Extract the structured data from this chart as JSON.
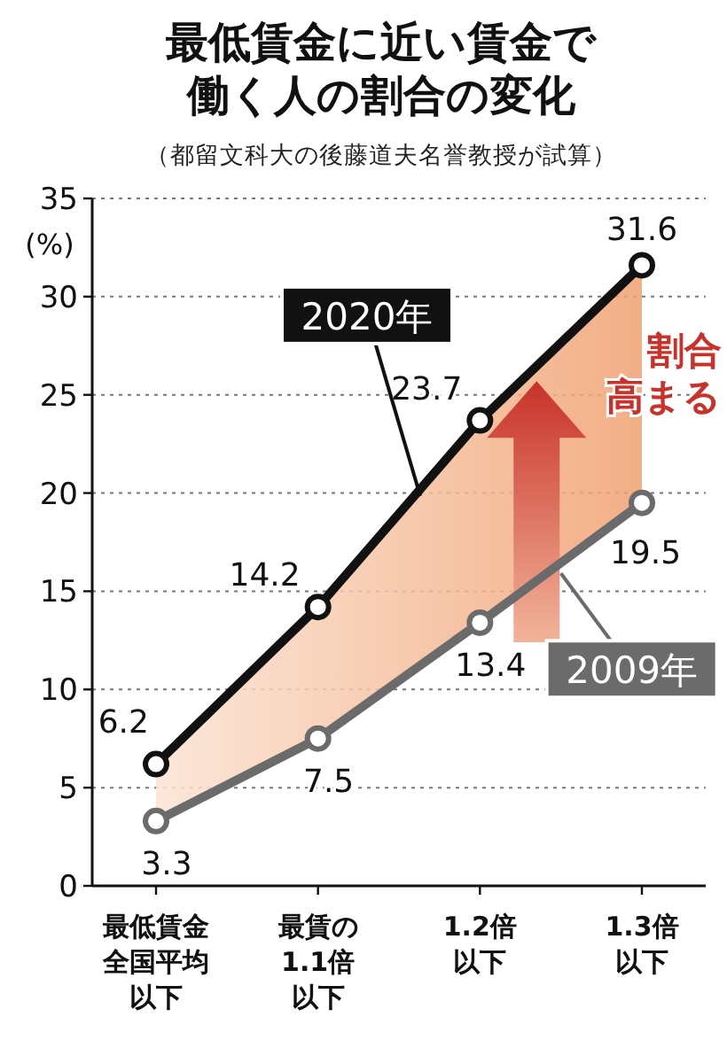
{
  "chart_data": {
    "type": "line",
    "title": "最低賃金に近い賃金で働く人の割合の変化",
    "subtitle": "（都留文科大の後藤道夫名誉教授が試算）",
    "ylabel": "(%)",
    "categories": [
      "最低賃金全国平均以下",
      "最賃の1.1倍以下",
      "1.2倍以下",
      "1.3倍以下"
    ],
    "series": [
      {
        "name": "2020年",
        "color": "#111111",
        "values": [
          6.2,
          14.2,
          23.7,
          31.6
        ]
      },
      {
        "name": "2009年",
        "color": "#6b6b6b",
        "values": [
          3.3,
          7.5,
          13.4,
          19.5
        ]
      }
    ],
    "ylim": [
      0,
      35
    ],
    "yticks": [
      0,
      5,
      10,
      15,
      20,
      25,
      30,
      35
    ],
    "grid": "y",
    "legend": false,
    "marker": "circle",
    "line_style": "solid",
    "data_labels": true,
    "annotations": [
      "割合",
      "高まる"
    ]
  }
}
